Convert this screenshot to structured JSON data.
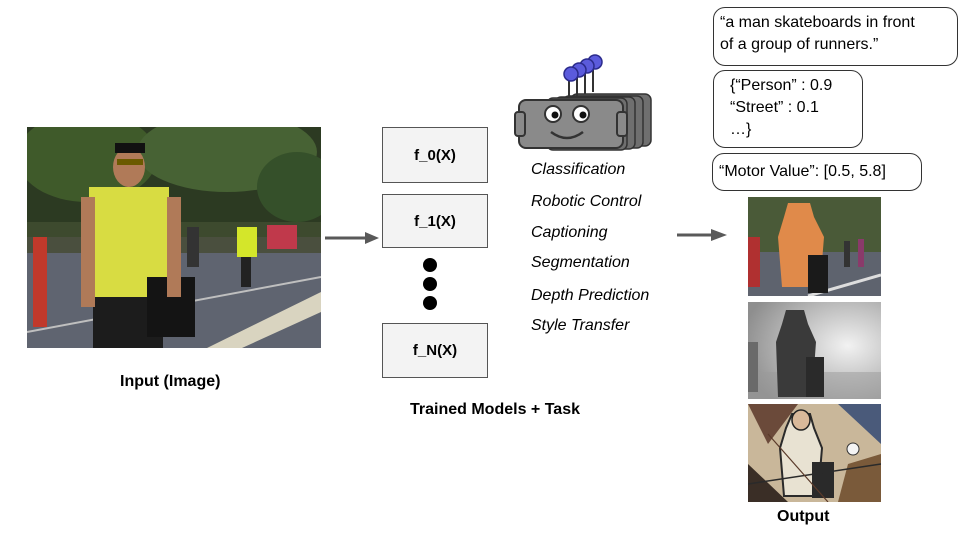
{
  "input": {
    "label": "Input (Image)"
  },
  "models": {
    "functions": [
      "f_0(X)",
      "f_1(X)",
      "f_N(X)"
    ],
    "label": "Trained Models + Task"
  },
  "tasks": [
    "Classification",
    "Robotic Control",
    "Captioning",
    "Segmentation",
    "Depth Prediction",
    "Style Transfer"
  ],
  "outputs": {
    "caption_line1": "“a man skateboards in front",
    "caption_line2": "of a group of runners.”",
    "classes_line1": "{“Person” : 0.9",
    "classes_line2": "“Street” : 0.1",
    "classes_line3": "…}",
    "motor": "“Motor Value”: [0.5, 5.8]",
    "label": "Output"
  },
  "colors": {
    "robot_body": "#8a8a8a",
    "robot_bulb": "#5b5bdc",
    "box_fill": "#f3f3f3",
    "arrow": "#595959"
  }
}
